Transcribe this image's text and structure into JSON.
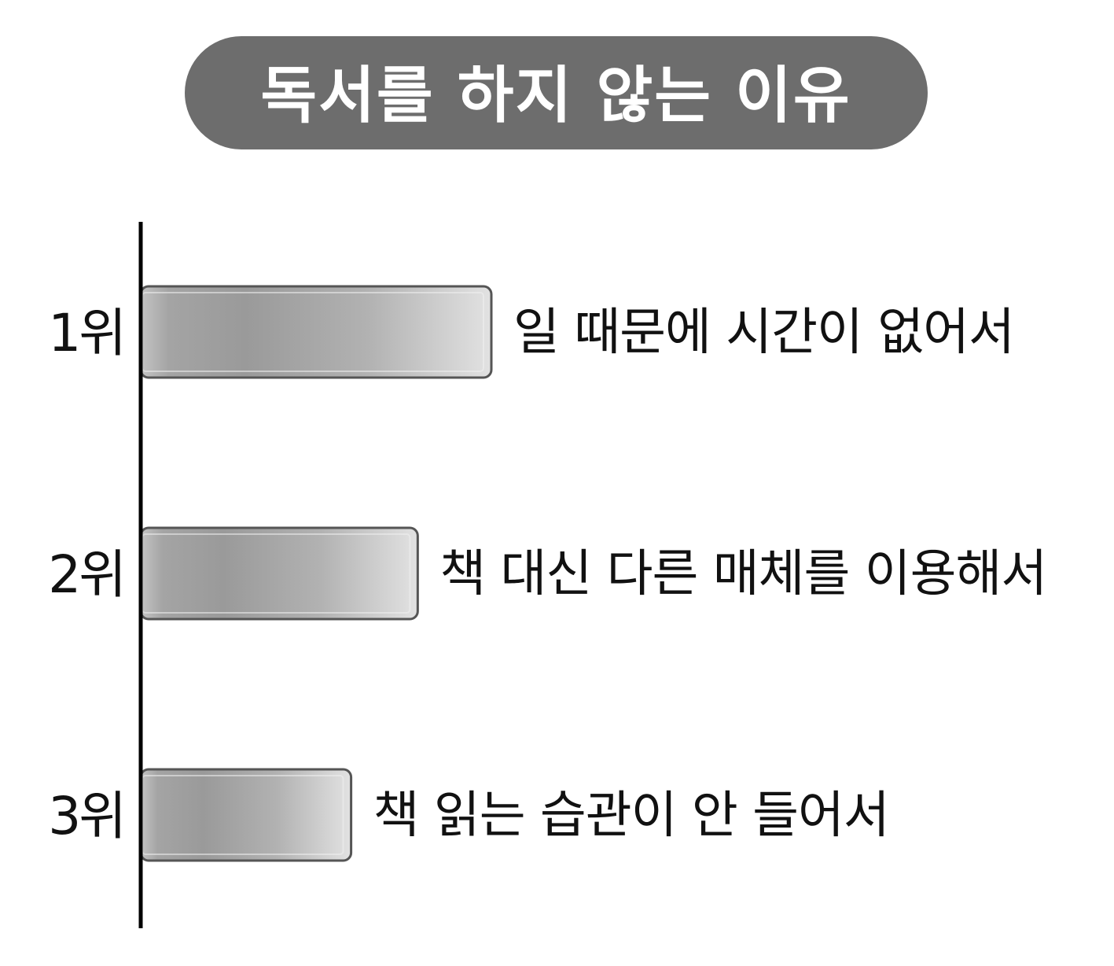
{
  "chart_data": {
    "type": "bar",
    "orientation": "horizontal",
    "title": "독서를 하지 않는 이유",
    "categories": [
      "1위",
      "2위",
      "3위"
    ],
    "labels": [
      "일 때문에 시간이 없어서",
      "책 대신 다른 매체를 이용해서",
      "책 읽는 습관이 안 들어서"
    ],
    "values": [
      100,
      79,
      60
    ],
    "xlim": [
      0,
      100
    ],
    "grid": false,
    "legend": "none"
  },
  "colors": {
    "title_bg": "#6d6d6d",
    "bar_dark": "#9a9a9a",
    "bar_light": "#e2e2e2",
    "bar_stroke": "#555555",
    "axis": "#000000"
  }
}
